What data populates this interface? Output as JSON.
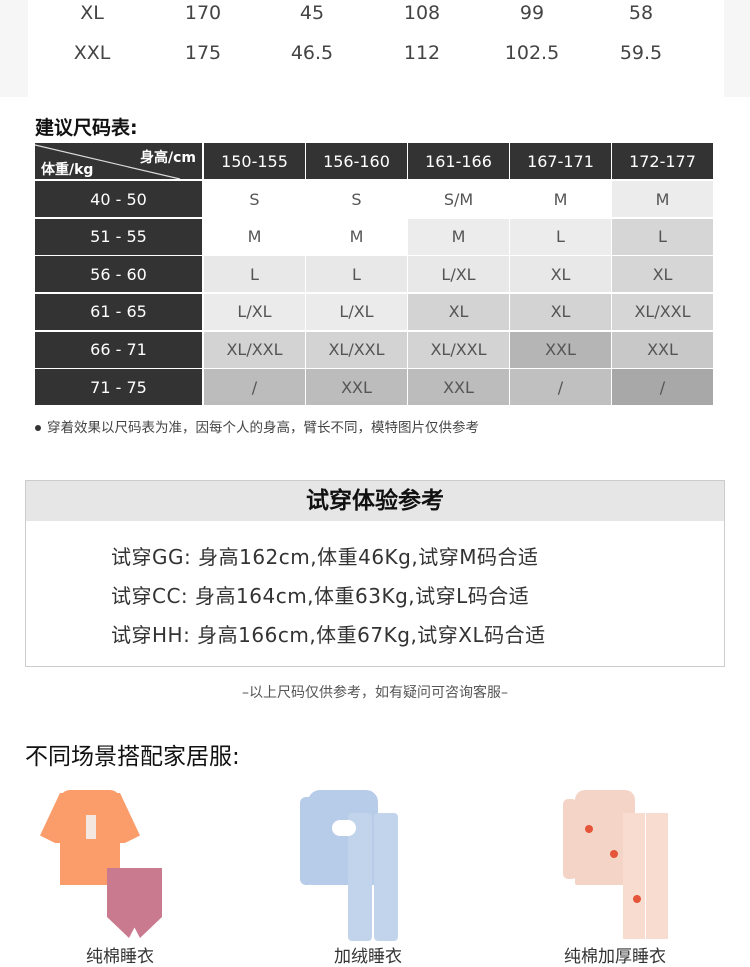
{
  "measure_table": {
    "rows": [
      [
        "XL",
        "170",
        "45",
        "108",
        "99",
        "58"
      ],
      [
        "XXL",
        "175",
        "46.5",
        "112",
        "102.5",
        "59.5"
      ]
    ]
  },
  "size_chart": {
    "title": "建议尺码表:",
    "corner_height": "身高/cm",
    "corner_weight": "体重/kg",
    "heights": [
      "150-155",
      "156-160",
      "161-166",
      "167-171",
      "172-177"
    ],
    "rows": [
      {
        "weight": "40 - 50",
        "sizes": [
          "S",
          "S",
          "S/M",
          "M",
          "M"
        ]
      },
      {
        "weight": "51 - 55",
        "sizes": [
          "M",
          "M",
          "M",
          "L",
          "L"
        ]
      },
      {
        "weight": "56 - 60",
        "sizes": [
          "L",
          "L",
          "L/XL",
          "XL",
          "XL"
        ]
      },
      {
        "weight": "61 - 65",
        "sizes": [
          "L/XL",
          "L/XL",
          "XL",
          "XL",
          "XL/XXL"
        ]
      },
      {
        "weight": "66 - 71",
        "sizes": [
          "XL/XXL",
          "XL/XXL",
          "XL/XXL",
          "XXL",
          "XXL"
        ]
      },
      {
        "weight": "71 - 75",
        "sizes": [
          "/",
          "XXL",
          "XXL",
          "/",
          "/"
        ]
      }
    ],
    "shades": [
      [
        "#ffffff",
        "#ffffff",
        "#ffffff",
        "#ffffff",
        "#ececec"
      ],
      [
        "#ffffff",
        "#ffffff",
        "#ececec",
        "#ececec",
        "#d6d6d6"
      ],
      [
        "#e8e8e8",
        "#e8e8e8",
        "#e8e8e8",
        "#e8e8e8",
        "#d6d6d6"
      ],
      [
        "#ebebeb",
        "#ebebeb",
        "#d3d3d3",
        "#d3d3d3",
        "#d6d6d6"
      ],
      [
        "#d3d3d3",
        "#d3d3d3",
        "#d3d3d3",
        "#b5b5b5",
        "#c8c8c8"
      ],
      [
        "#bcbcbc",
        "#bcbcbc",
        "#bcbcbc",
        "#c0c0c0",
        "#a8a8a8"
      ]
    ],
    "note": "穿着效果以尺码表为准，因每个人的身高，臂长不同，模特图片仅供参考"
  },
  "trial": {
    "title": "试穿体验参考",
    "lines": [
      "试穿GG: 身高162cm,体重46Kg,试穿M码合适",
      "试穿CC: 身高164cm,体重63Kg,试穿L码合适",
      "试穿HH: 身高166cm,体重67Kg,试穿XL码合适"
    ]
  },
  "footnote": "–以上尺码仅供参考，如有疑问可咨询客服–",
  "scenes": {
    "title": "不同场景搭配家居服:",
    "items": [
      {
        "label": "纯棉睡衣",
        "icon": "orange-tshirt-pink-shorts-image"
      },
      {
        "label": "加绒睡衣",
        "icon": "blue-cloud-pajamas-image"
      },
      {
        "label": "纯棉加厚睡衣",
        "icon": "pink-printed-pajamas-image"
      }
    ]
  }
}
